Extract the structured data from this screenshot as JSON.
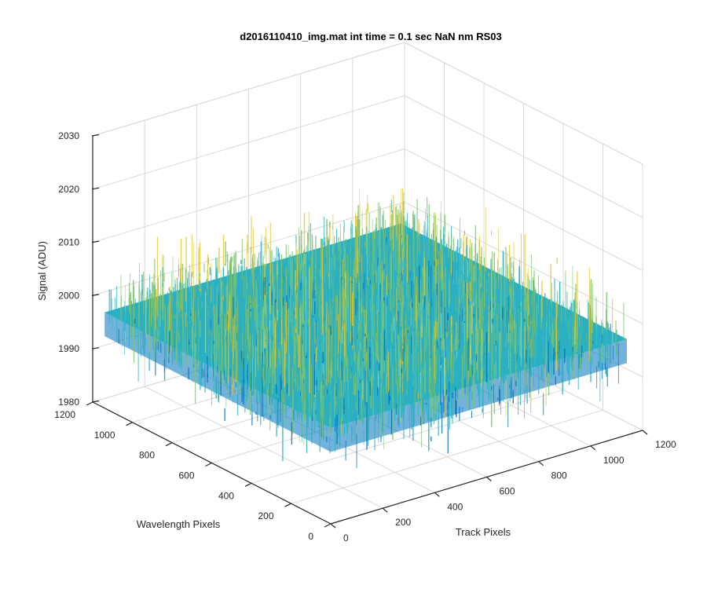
{
  "chart_data": {
    "type": "surface",
    "title": "d2016110410_img.mat int time = 0.1 sec  NaN nm RS03",
    "x_axis": {
      "label": "Track Pixels",
      "range": [
        0,
        1200
      ],
      "ticks": [
        "0",
        "200",
        "400",
        "600",
        "800",
        "1000",
        "1200"
      ]
    },
    "y_axis": {
      "label": "Wavelength Pixels",
      "range": [
        0,
        1200
      ],
      "ticks": [
        "0",
        "200",
        "400",
        "600",
        "800",
        "1000",
        "1200"
      ]
    },
    "z_axis": {
      "label": "Signal (ADU)",
      "range": [
        1980,
        2030
      ],
      "ticks": [
        "1980",
        "1990",
        "2000",
        "2010",
        "2020",
        "2030"
      ]
    },
    "surface": {
      "mean": 1998,
      "noise_amplitude": 7,
      "extent_x": [
        0,
        1140
      ],
      "extent_y": [
        0,
        1140
      ],
      "colormap": "parula"
    },
    "grid": true,
    "colors": {
      "low": "#0072bd",
      "mid": "#2ab0c2",
      "high": "#e6c830"
    }
  }
}
